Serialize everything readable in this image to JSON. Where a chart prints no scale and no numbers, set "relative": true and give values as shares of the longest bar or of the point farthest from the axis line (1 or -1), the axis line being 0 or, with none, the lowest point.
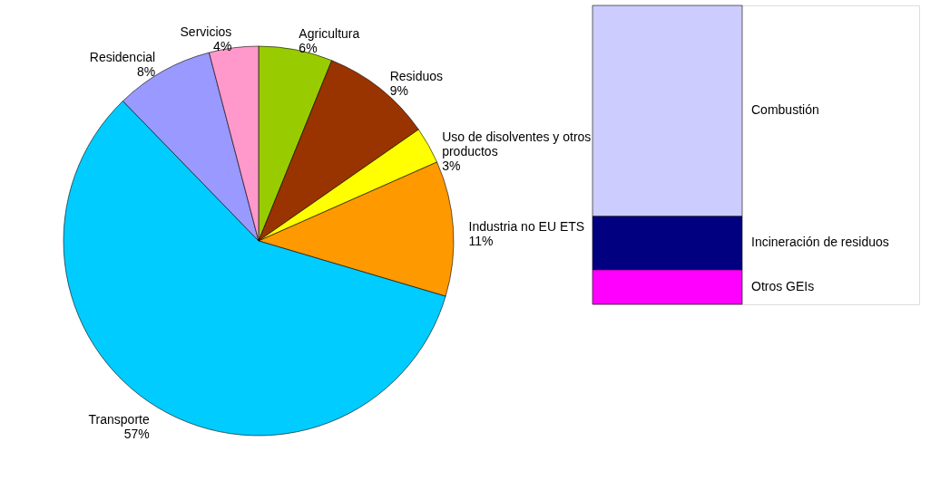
{
  "chart_data": [
    {
      "type": "pie",
      "categories": [
        "Agricultura",
        "Residuos",
        "Uso de disolventes y otros productos",
        "Industria no EU ETS",
        "Transporte",
        "Residencial",
        "Servicios"
      ],
      "values": [
        6,
        9,
        3,
        11,
        57,
        8,
        4
      ],
      "value_labels": [
        "6%",
        "9%",
        "3%",
        "11%",
        "57%",
        "8%",
        "4%"
      ],
      "colors": [
        "#99cc00",
        "#993300",
        "#ffff00",
        "#ff9900",
        "#00ccff",
        "#9999ff",
        "#ff99cc"
      ]
    },
    {
      "type": "bar",
      "stacked": true,
      "relative": true,
      "categories": [
        null
      ],
      "series": [
        {
          "name": "Otros GEIs",
          "color": "#ff00ff",
          "values": [
            0.116
          ]
        },
        {
          "name": "Incineración de residuos",
          "color": "#000080",
          "values": [
            0.179
          ]
        },
        {
          "name": "Combustión",
          "color": "#ccccff",
          "values": [
            0.705
          ]
        }
      ]
    }
  ]
}
